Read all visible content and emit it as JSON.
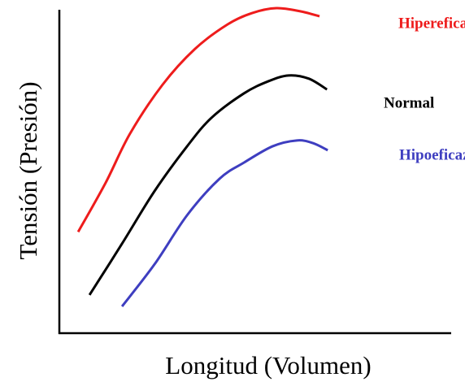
{
  "chart_data": {
    "type": "line",
    "xlabel": "Longitud (Volumen)",
    "ylabel": "Tensión (Presión)",
    "xlim": [
      0,
      100
    ],
    "ylim": [
      0,
      100
    ],
    "series": [
      {
        "name": "Hipereficaz",
        "color": "#ee1c1c",
        "x": [
          4.8,
          11.8,
          18.0,
          26.3,
          34.6,
          42.9,
          49.2,
          55.4,
          61.6,
          66.4
        ],
        "values": [
          31,
          46,
          61,
          76,
          87,
          94.5,
          98,
          99.5,
          98.5,
          97
        ]
      },
      {
        "name": "Normal",
        "color": "#000000",
        "x": [
          7.7,
          16.0,
          24.3,
          32.6,
          38.8,
          47.1,
          53.3,
          58.5,
          63.7,
          68.3
        ],
        "values": [
          11.7,
          27.4,
          43.5,
          57.2,
          65.9,
          73.4,
          77.1,
          78.9,
          77.9,
          74.6
        ]
      },
      {
        "name": "Hipoeficaz",
        "color": "#3e3ec0",
        "x": [
          16.0,
          24.3,
          32.6,
          40.9,
          47.1,
          54.4,
          60.6,
          64.7,
          68.5
        ],
        "values": [
          8.2,
          21.1,
          36.1,
          47.3,
          52.2,
          57.2,
          59.0,
          58.2,
          56.0
        ]
      }
    ]
  }
}
